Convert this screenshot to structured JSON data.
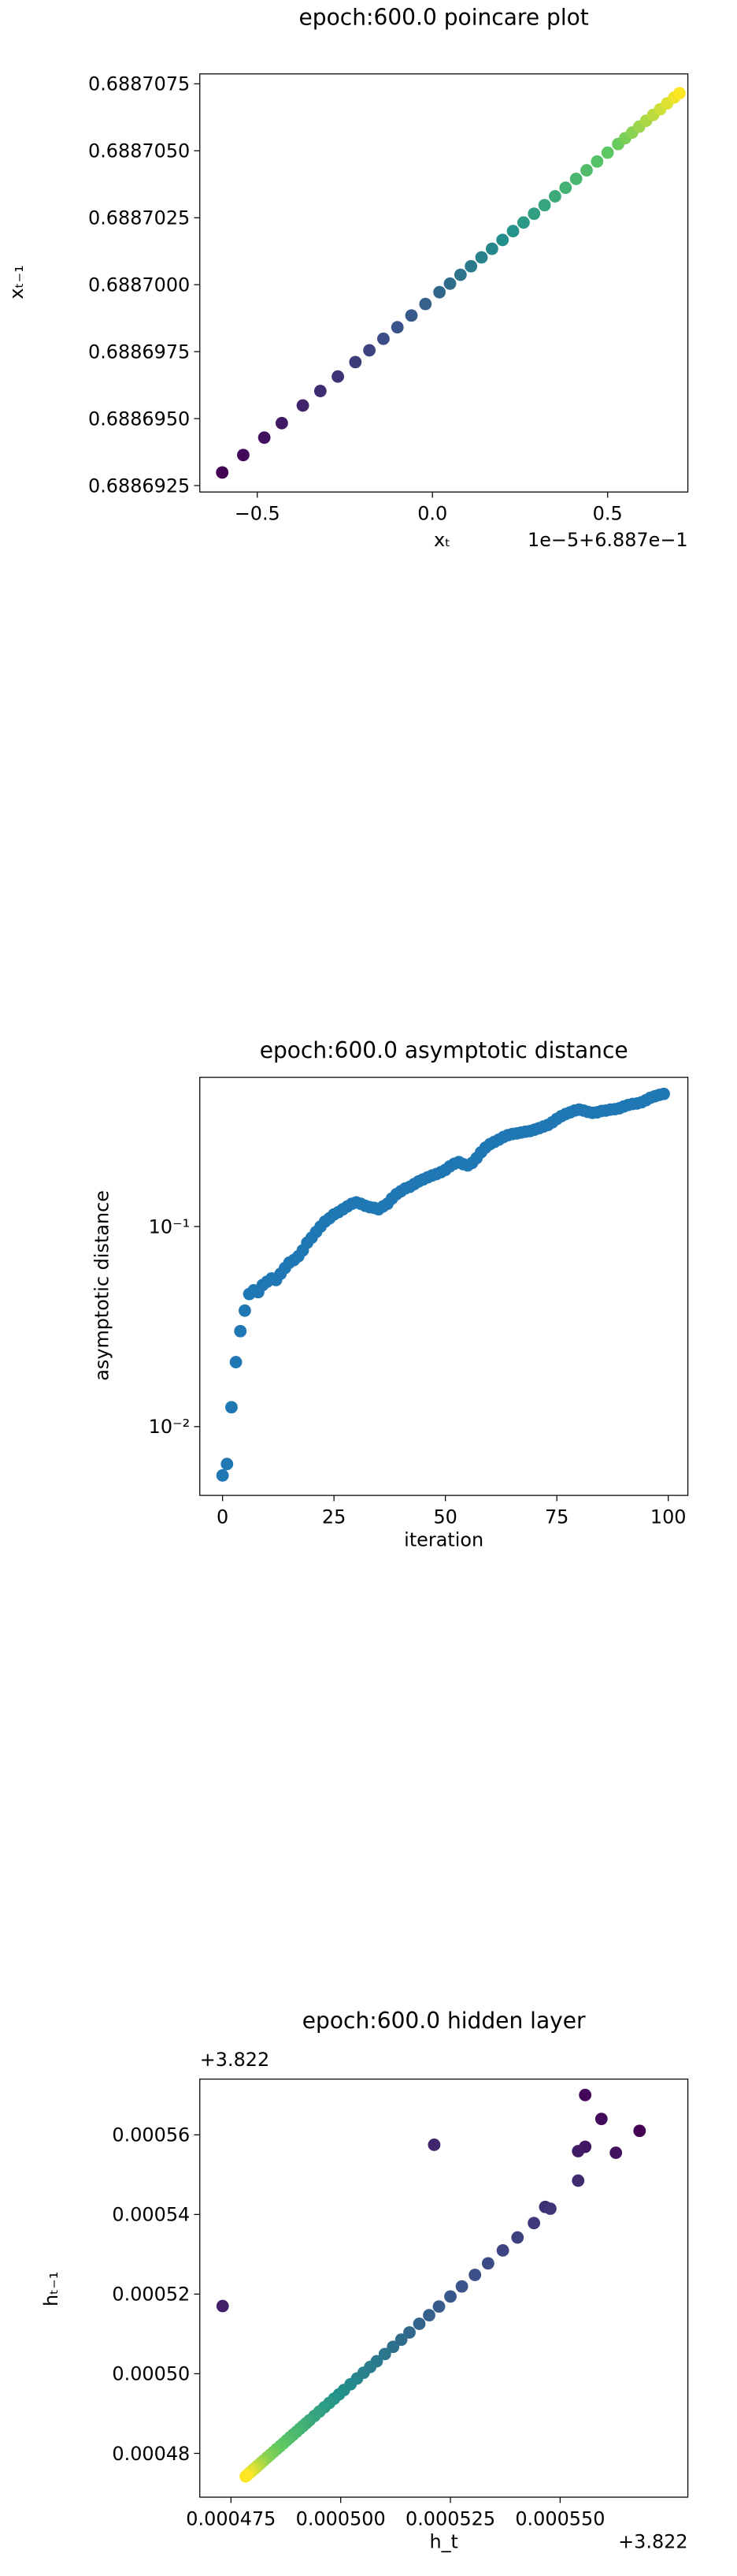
{
  "chart_data": [
    {
      "type": "scatter",
      "title": "epoch:600.0 poincare plot",
      "xlabel": "xₜ",
      "ylabel": "xₜ₋₁",
      "x_offset_label": "1e−5+6.887e−1",
      "colormap": "viridis",
      "x": [
        -0.6,
        -0.54,
        -0.48,
        -0.43,
        -0.37,
        -0.32,
        -0.27,
        -0.22,
        -0.18,
        -0.14,
        -0.1,
        -0.06,
        -0.02,
        0.02,
        0.05,
        0.08,
        0.11,
        0.14,
        0.17,
        0.2,
        0.23,
        0.26,
        0.29,
        0.32,
        0.35,
        0.38,
        0.41,
        0.44,
        0.47,
        0.5,
        0.53,
        0.55,
        0.57,
        0.59,
        0.61,
        0.63,
        0.65,
        0.67,
        0.69,
        0.705
      ],
      "values": [
        0.68869299,
        0.68869364,
        0.68869429,
        0.68869483,
        0.68869549,
        0.68869603,
        0.68869657,
        0.68869711,
        0.68869755,
        0.68869798,
        0.68869841,
        0.68869885,
        0.68869928,
        0.68869972,
        0.68870004,
        0.68870037,
        0.68870069,
        0.68870102,
        0.68870134,
        0.68870167,
        0.688702,
        0.68870232,
        0.68870265,
        0.68870297,
        0.6887033,
        0.68870362,
        0.68870395,
        0.68870427,
        0.6887046,
        0.68870493,
        0.68870525,
        0.68870547,
        0.68870568,
        0.6887059,
        0.68870612,
        0.68870634,
        0.68870655,
        0.68870677,
        0.68870699,
        0.68870715
      ],
      "xlim": [
        -0.664,
        0.729
      ],
      "xticks": [
        {
          "value": -0.5,
          "label": "−0.5"
        },
        {
          "value": 0,
          "label": "0.0"
        },
        0.5
      ],
      "ylim": [
        0.68869226,
        0.68870787
      ],
      "yticks": [
        0.6886925,
        {
          "value": 0.688695,
          "label": "0.6886950"
        },
        0.6886975,
        {
          "value": 0.6887,
          "label": "0.6887000"
        },
        0.6887025,
        {
          "value": 0.688705,
          "label": "0.6887050"
        },
        0.6887075
      ]
    },
    {
      "type": "scatter",
      "title": "epoch:600.0 asymptotic distance",
      "xlabel": "iteration",
      "ylabel": "asymptotic distance",
      "color": "#1f77b4",
      "yscale": "log",
      "x": [
        0,
        1,
        2,
        3,
        4,
        5,
        6,
        7,
        8,
        9,
        10,
        11,
        12,
        13,
        14,
        15,
        16,
        17,
        18,
        19,
        20,
        21,
        22,
        23,
        24,
        25,
        26,
        27,
        28,
        29,
        30,
        31,
        32,
        33,
        34,
        35,
        36,
        37,
        38,
        39,
        40,
        41,
        42,
        43,
        44,
        45,
        46,
        47,
        48,
        49,
        50,
        51,
        52,
        53,
        54,
        55,
        56,
        57,
        58,
        59,
        60,
        61,
        62,
        63,
        64,
        65,
        66,
        67,
        68,
        69,
        70,
        71,
        72,
        73,
        74,
        75,
        76,
        77,
        78,
        79,
        80,
        81,
        82,
        83,
        84,
        85,
        86,
        87,
        88,
        89,
        90,
        91,
        92,
        93,
        94,
        95,
        96,
        97,
        98,
        99
      ],
      "values": [
        0.0057,
        0.0065,
        0.0125,
        0.021,
        0.03,
        0.038,
        0.046,
        0.048,
        0.047,
        0.051,
        0.053,
        0.055,
        0.054,
        0.058,
        0.062,
        0.066,
        0.068,
        0.071,
        0.076,
        0.083,
        0.088,
        0.094,
        0.1,
        0.106,
        0.11,
        0.115,
        0.118,
        0.122,
        0.126,
        0.13,
        0.132,
        0.13,
        0.127,
        0.125,
        0.124,
        0.122,
        0.126,
        0.13,
        0.138,
        0.145,
        0.15,
        0.155,
        0.158,
        0.163,
        0.168,
        0.172,
        0.176,
        0.18,
        0.183,
        0.187,
        0.192,
        0.2,
        0.206,
        0.21,
        0.205,
        0.202,
        0.208,
        0.22,
        0.235,
        0.248,
        0.258,
        0.265,
        0.272,
        0.28,
        0.286,
        0.29,
        0.292,
        0.295,
        0.298,
        0.3,
        0.305,
        0.31,
        0.316,
        0.322,
        0.332,
        0.345,
        0.356,
        0.365,
        0.372,
        0.38,
        0.384,
        0.38,
        0.374,
        0.37,
        0.372,
        0.378,
        0.38,
        0.384,
        0.386,
        0.39,
        0.398,
        0.405,
        0.41,
        0.412,
        0.418,
        0.428,
        0.44,
        0.448,
        0.455,
        0.46
      ],
      "xlim": [
        -5.1,
        104.4
      ],
      "xticks": [
        0,
        25,
        50,
        75,
        100
      ],
      "ylim": [
        0.00453,
        0.557
      ],
      "yticks": [
        {
          "value": 0.01,
          "label": "10⁻²"
        },
        {
          "value": 0.1,
          "label": "10⁻¹"
        }
      ]
    },
    {
      "type": "scatter",
      "title": "epoch:600.0 hidden layer",
      "xlabel": "h_t",
      "ylabel": "hₜ₋₁",
      "x_offset_label": "+3.822",
      "y_offset_label": "+3.822",
      "colormap": "viridis",
      "x": [
        0.0005681,
        0.0005557,
        0.0005594,
        0.0005627,
        0.0005557,
        0.0005541,
        0.0004731,
        0.0005213,
        0.0005541,
        0.0005466,
        0.00054776,
        0.00054403,
        0.00054029,
        0.00053694,
        0.00053358,
        0.00053059,
        0.00052761,
        0.000525,
        0.00052239,
        0.00052015,
        0.00051791,
        0.00051567,
        0.0005138,
        0.00051194,
        0.00051007,
        0.00050821,
        0.00050672,
        0.00050522,
        0.00050373,
        0.00050224,
        0.00050075,
        0.00049963,
        0.00049851,
        0.00049739,
        0.00049627,
        0.00049515,
        0.00049403,
        0.00049291,
        0.00049216,
        0.00049142,
        0.00049067,
        0.00048993,
        0.00048918,
        0.00048843,
        0.00048769,
        0.00048694,
        0.0004862,
        0.00048545,
        0.0004847,
        0.00048396,
        0.00048321,
        0.00048246,
        0.00048209,
        0.00048172,
        0.00048134,
        0.00048097,
        0.0004806,
        0.00048023,
        0.00047985,
        0.00047948,
        0.00047911,
        0.00047873,
        0.00047836
      ],
      "values": [
        0.000561,
        0.00057,
        0.000564,
        0.0005555,
        0.000557,
        0.0005559,
        0.000517,
        0.0005575,
        0.0005485,
        0.0005419,
        0.00054145,
        0.00053784,
        0.00053422,
        0.00053097,
        0.00052772,
        0.00052483,
        0.00052193,
        0.00051941,
        0.00051688,
        0.00051471,
        0.00051254,
        0.00051037,
        0.00050856,
        0.00050676,
        0.00050495,
        0.00050314,
        0.0005017,
        0.00050025,
        0.00049881,
        0.00049736,
        0.00049591,
        0.00049483,
        0.00049375,
        0.00049266,
        0.00049158,
        0.00049049,
        0.00048941,
        0.00048832,
        0.0004876,
        0.00048688,
        0.00048616,
        0.00048543,
        0.00048471,
        0.00048399,
        0.00048327,
        0.00048254,
        0.00048182,
        0.0004811,
        0.00048037,
        0.00047965,
        0.00047893,
        0.00047821,
        0.00047784,
        0.00047748,
        0.00047712,
        0.00047676,
        0.0004764,
        0.00047604,
        0.00047568,
        0.00047531,
        0.00047495,
        0.00047459,
        0.00047423
      ],
      "xlim": [
        0.0004679,
        0.0005791
      ],
      "xticks": [
        0.000475,
        {
          "value": 0.0005,
          "label": "0.000500"
        },
        0.000525,
        {
          "value": 0.00055,
          "label": "0.000550"
        }
      ],
      "ylim": [
        0.000469,
        0.000574
      ],
      "yticks": [
        0.00048,
        {
          "value": 0.0005,
          "label": "0.00050"
        },
        0.00052,
        0.00054,
        0.00056
      ]
    }
  ]
}
